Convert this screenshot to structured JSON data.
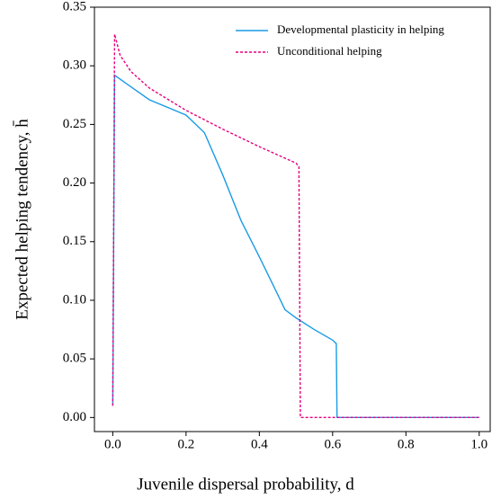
{
  "chart_data": {
    "type": "line",
    "xlabel": "Juvenile dispersal probability, d",
    "ylabel": "Expected helping tendency, h̄",
    "xlim": [
      -0.05,
      1.03
    ],
    "ylim": [
      -0.012,
      0.35
    ],
    "xticks": [
      {
        "value": 0,
        "label": "0.0"
      },
      {
        "value": 0.2,
        "label": "0.2"
      },
      {
        "value": 0.4,
        "label": "0.4"
      },
      {
        "value": 0.6,
        "label": "0.6"
      },
      {
        "value": 0.8,
        "label": "0.8"
      },
      {
        "value": 1,
        "label": "1.0"
      }
    ],
    "yticks": [
      {
        "value": 0,
        "label": "0.00"
      },
      {
        "value": 0.05,
        "label": "0.05"
      },
      {
        "value": 0.1,
        "label": "0.10"
      },
      {
        "value": 0.15,
        "label": "0.15"
      },
      {
        "value": 0.2,
        "label": "0.20"
      },
      {
        "value": 0.25,
        "label": "0.25"
      },
      {
        "value": 0.3,
        "label": "0.30"
      },
      {
        "value": 0.35,
        "label": "0.35"
      }
    ],
    "legend": "upper right",
    "series": [
      {
        "name": "Developmental plasticity in helping",
        "color": "#1a9be6",
        "dash": false,
        "x": [
          0,
          0.005,
          0.05,
          0.1,
          0.2,
          0.25,
          0.3,
          0.35,
          0.4,
          0.45,
          0.47,
          0.5,
          0.55,
          0.6,
          0.61,
          0.612,
          1.0
        ],
        "values": [
          0.01,
          0.292,
          0.282,
          0.271,
          0.258,
          0.243,
          0.207,
          0.168,
          0.137,
          0.105,
          0.092,
          0.085,
          0.075,
          0.066,
          0.063,
          0,
          0
        ]
      },
      {
        "name": "Unconditional helping",
        "color": "#e6007e",
        "dash": true,
        "x": [
          0,
          0.005,
          0.02,
          0.05,
          0.1,
          0.2,
          0.3,
          0.4,
          0.5,
          0.508,
          0.512,
          1.0
        ],
        "values": [
          0.01,
          0.327,
          0.309,
          0.295,
          0.281,
          0.262,
          0.246,
          0.231,
          0.217,
          0.214,
          0,
          0
        ]
      }
    ]
  }
}
